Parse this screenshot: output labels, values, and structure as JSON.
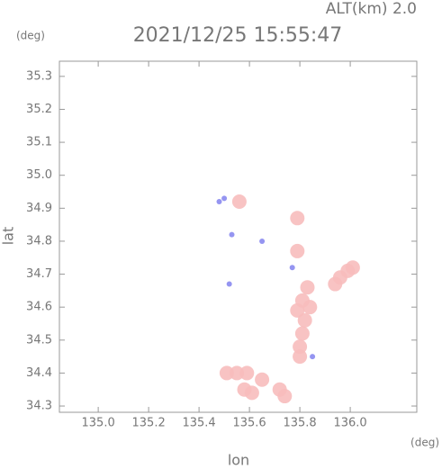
{
  "chart_data": {
    "type": "scatter",
    "title": "2021/12/25 15:55:47",
    "subtitle": "ALT(km) 2.0",
    "y_unit": "(deg)",
    "x_unit": "(deg)",
    "x_label": "lon",
    "y_label": "lat",
    "xlim": [
      134.846,
      136.264
    ],
    "ylim": [
      34.281,
      35.346
    ],
    "xticks": [
      {
        "value": 135,
        "label": "135.0"
      },
      135.2,
      135.4,
      135.6,
      135.8,
      {
        "value": 136,
        "label": "136.0"
      }
    ],
    "yticks": [
      34.3,
      34.4,
      34.5,
      34.6,
      34.7,
      34.8,
      34.9,
      {
        "value": 35,
        "label": "35.0"
      },
      35.1,
      35.2,
      35.3
    ],
    "series": [
      {
        "color": "#f7bcbc",
        "x": [
          135.96,
          135.99,
          135.94,
          136.01,
          135.83,
          135.81,
          135.79,
          135.82,
          135.81,
          135.8,
          135.8,
          135.84,
          135.79,
          135.51,
          135.55,
          135.59,
          135.58,
          135.61,
          135.65,
          135.74,
          135.72,
          135.56,
          135.79
        ],
        "y": [
          34.69,
          34.71,
          34.67,
          34.72,
          34.66,
          34.62,
          34.59,
          34.56,
          34.52,
          34.48,
          34.45,
          34.6,
          34.87,
          34.4,
          34.4,
          34.4,
          34.35,
          34.34,
          34.38,
          34.33,
          34.35,
          34.92,
          34.77
        ]
      },
      {
        "color": "#8a8af0",
        "x": [
          135.48,
          135.5,
          135.53,
          135.65,
          135.52,
          135.85,
          135.77
        ],
        "y": [
          34.92,
          34.93,
          34.82,
          34.8,
          34.67,
          34.45,
          34.72
        ]
      }
    ]
  }
}
